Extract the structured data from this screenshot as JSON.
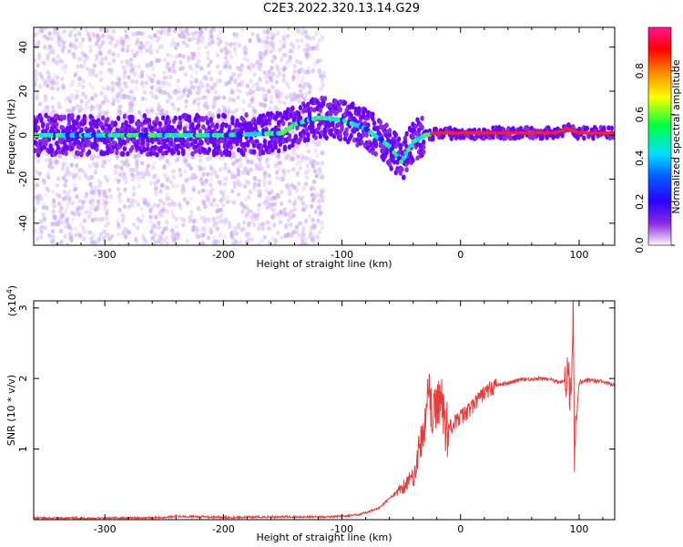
{
  "title": "C2E3.2022.320.13.14.G29",
  "chart_data": [
    {
      "type": "heatmap",
      "xlabel": "Height of straight line (km)",
      "ylabel": "Frequency (Hz)",
      "xlim": [
        -360,
        130
      ],
      "ylim": [
        -50,
        49
      ],
      "xticks": [
        -300,
        -200,
        -100,
        0,
        100
      ],
      "yticks": [
        -40,
        -20,
        0,
        20,
        40
      ],
      "colorbar": {
        "label": "Normalized spectral amplitude",
        "range": [
          0.0,
          1.0
        ],
        "ticks": [
          "0.0",
          "0.2",
          "0.4",
          "0.6",
          "0.8"
        ],
        "colormap": [
          "#ffffff",
          "#b080f0",
          "#6a00ff",
          "#0000ff",
          "#00d8ff",
          "#00ff40",
          "#ffff00",
          "#ff8000",
          "#ff0000",
          "#ff0090"
        ]
      },
      "ridge_frequency": {
        "x": [
          -360,
          -300,
          -200,
          -150,
          -140,
          -120,
          -100,
          -80,
          -60,
          -50,
          -40,
          -30,
          -20,
          0,
          50,
          80,
          90,
          100,
          130
        ],
        "y": [
          0,
          0,
          0,
          1,
          5,
          8,
          7,
          3,
          -5,
          -12,
          -3,
          0,
          1,
          1,
          1,
          1,
          3,
          1,
          1
        ]
      }
    },
    {
      "type": "line",
      "xlabel": "Height of straight line (km)",
      "ylabel": "SNR (10 * v/v)",
      "scale_label": "(x10",
      "scale_exp": "4",
      "scale_close": ")",
      "xlim": [
        -360,
        130
      ],
      "ylim": [
        0,
        3.1
      ],
      "xticks": [
        -300,
        -200,
        -100,
        0,
        100
      ],
      "yticks": [
        1,
        2,
        3
      ],
      "color": "#e83c3c",
      "series": [
        {
          "x": [
            -360,
            -300,
            -250,
            -240,
            -200,
            -150,
            -110,
            -100,
            -90,
            -80,
            -70,
            -60,
            -50,
            -40,
            -35,
            -30,
            -27,
            -24,
            -20,
            -17,
            -14,
            -10,
            0,
            10,
            20,
            30,
            50,
            70,
            85,
            90,
            93,
            94,
            95,
            96,
            100,
            110,
            120,
            130
          ],
          "y": [
            0.02,
            0.02,
            0.03,
            0.05,
            0.03,
            0.04,
            0.04,
            0.05,
            0.06,
            0.1,
            0.15,
            0.3,
            0.45,
            0.6,
            1.0,
            1.3,
            2.05,
            1.4,
            1.6,
            1.8,
            1.4,
            1.3,
            1.45,
            1.6,
            1.8,
            1.9,
            1.98,
            2.0,
            1.95,
            2.0,
            1.8,
            2.4,
            3.1,
            1.0,
            1.95,
            1.98,
            1.95,
            1.9
          ]
        }
      ]
    }
  ]
}
